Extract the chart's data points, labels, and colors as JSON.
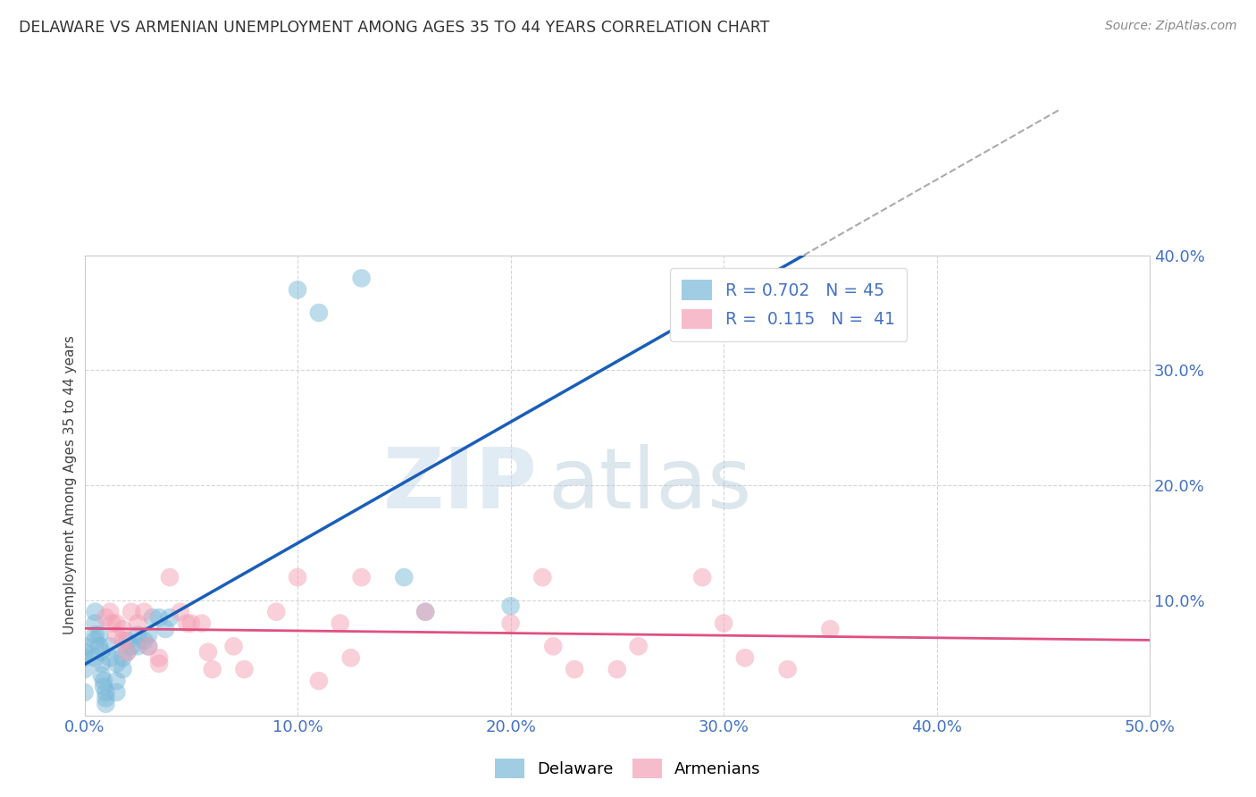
{
  "title": "DELAWARE VS ARMENIAN UNEMPLOYMENT AMONG AGES 35 TO 44 YEARS CORRELATION CHART",
  "source": "Source: ZipAtlas.com",
  "ylabel": "Unemployment Among Ages 35 to 44 years",
  "xlim": [
    0.0,
    0.5
  ],
  "ylim": [
    0.0,
    0.4
  ],
  "xticks": [
    0.0,
    0.1,
    0.2,
    0.3,
    0.4,
    0.5
  ],
  "yticks": [
    0.0,
    0.1,
    0.2,
    0.3,
    0.4
  ],
  "xtick_labels": [
    "0.0%",
    "10.0%",
    "20.0%",
    "30.0%",
    "40.0%",
    "50.0%"
  ],
  "ytick_labels": [
    "",
    "10.0%",
    "20.0%",
    "30.0%",
    "40.0%"
  ],
  "delaware_color": "#7ab8d9",
  "armenian_color": "#f4a0b5",
  "delaware_R": 0.702,
  "delaware_N": 45,
  "armenian_R": 0.115,
  "armenian_N": 41,
  "watermark_zip": "ZIP",
  "watermark_atlas": "atlas",
  "bg_color": "#ffffff",
  "grid_color": "#cccccc",
  "title_color": "#333333",
  "tick_color": "#4472c4",
  "legend_text_color": "#4472c4",
  "delaware_line_color": "#1a5eb8",
  "armenian_line_color": "#e05080",
  "dashed_line_color": "#aaaaaa",
  "delaware_points": [
    [
      0.0,
      0.02
    ],
    [
      0.0,
      0.04
    ],
    [
      0.0,
      0.05
    ],
    [
      0.0,
      0.06
    ],
    [
      0.0,
      0.055
    ],
    [
      0.005,
      0.05
    ],
    [
      0.005,
      0.065
    ],
    [
      0.005,
      0.07
    ],
    [
      0.005,
      0.08
    ],
    [
      0.005,
      0.09
    ],
    [
      0.007,
      0.07
    ],
    [
      0.007,
      0.06
    ],
    [
      0.008,
      0.055
    ],
    [
      0.008,
      0.045
    ],
    [
      0.008,
      0.035
    ],
    [
      0.009,
      0.03
    ],
    [
      0.009,
      0.025
    ],
    [
      0.01,
      0.02
    ],
    [
      0.01,
      0.015
    ],
    [
      0.01,
      0.01
    ],
    [
      0.012,
      0.06
    ],
    [
      0.012,
      0.05
    ],
    [
      0.015,
      0.045
    ],
    [
      0.015,
      0.03
    ],
    [
      0.015,
      0.02
    ],
    [
      0.018,
      0.05
    ],
    [
      0.018,
      0.04
    ],
    [
      0.02,
      0.065
    ],
    [
      0.02,
      0.055
    ],
    [
      0.022,
      0.06
    ],
    [
      0.025,
      0.06
    ],
    [
      0.025,
      0.07
    ],
    [
      0.028,
      0.065
    ],
    [
      0.03,
      0.07
    ],
    [
      0.03,
      0.06
    ],
    [
      0.032,
      0.085
    ],
    [
      0.035,
      0.085
    ],
    [
      0.038,
      0.075
    ],
    [
      0.04,
      0.085
    ],
    [
      0.1,
      0.37
    ],
    [
      0.11,
      0.35
    ],
    [
      0.13,
      0.38
    ],
    [
      0.15,
      0.12
    ],
    [
      0.16,
      0.09
    ],
    [
      0.2,
      0.095
    ]
  ],
  "armenian_points": [
    [
      0.01,
      0.085
    ],
    [
      0.012,
      0.09
    ],
    [
      0.013,
      0.08
    ],
    [
      0.015,
      0.07
    ],
    [
      0.015,
      0.08
    ],
    [
      0.018,
      0.075
    ],
    [
      0.018,
      0.065
    ],
    [
      0.02,
      0.055
    ],
    [
      0.022,
      0.09
    ],
    [
      0.025,
      0.08
    ],
    [
      0.028,
      0.09
    ],
    [
      0.03,
      0.06
    ],
    [
      0.035,
      0.045
    ],
    [
      0.035,
      0.05
    ],
    [
      0.04,
      0.12
    ],
    [
      0.045,
      0.09
    ],
    [
      0.048,
      0.08
    ],
    [
      0.05,
      0.08
    ],
    [
      0.055,
      0.08
    ],
    [
      0.058,
      0.055
    ],
    [
      0.06,
      0.04
    ],
    [
      0.07,
      0.06
    ],
    [
      0.075,
      0.04
    ],
    [
      0.09,
      0.09
    ],
    [
      0.1,
      0.12
    ],
    [
      0.11,
      0.03
    ],
    [
      0.12,
      0.08
    ],
    [
      0.125,
      0.05
    ],
    [
      0.13,
      0.12
    ],
    [
      0.16,
      0.09
    ],
    [
      0.2,
      0.08
    ],
    [
      0.215,
      0.12
    ],
    [
      0.22,
      0.06
    ],
    [
      0.23,
      0.04
    ],
    [
      0.25,
      0.04
    ],
    [
      0.26,
      0.06
    ],
    [
      0.29,
      0.12
    ],
    [
      0.3,
      0.08
    ],
    [
      0.31,
      0.05
    ],
    [
      0.33,
      0.04
    ],
    [
      0.35,
      0.075
    ]
  ]
}
